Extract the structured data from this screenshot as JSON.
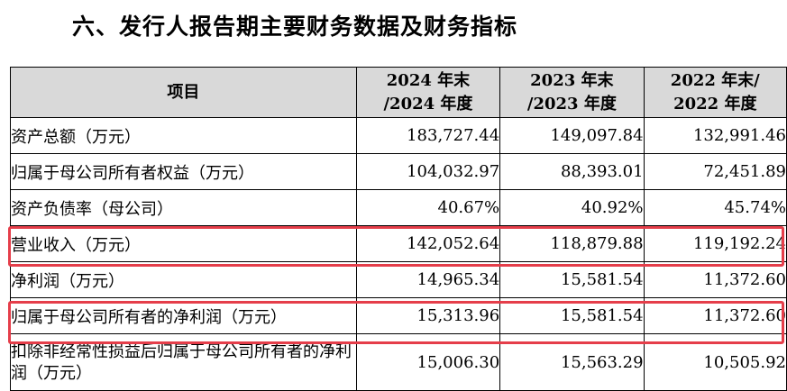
{
  "title": "六、发行人报告期主要财务数据及财务指标",
  "header": {
    "item": "项目",
    "col2024_line1": "2024 年末",
    "col2024_line2": "/2024 年度",
    "col2023_line1": "2023 年末",
    "col2023_line2": "/2023 年度",
    "col2022_line1": "2022 年末/",
    "col2022_line2": "2022 年度"
  },
  "rows": [
    {
      "label": "资产总额（万元）",
      "v2024": "183,727.44",
      "v2023": "149,097.84",
      "v2022": "132,991.46"
    },
    {
      "label": "归属于母公司所有者权益（万元）",
      "v2024": "104,032.97",
      "v2023": "88,393.01",
      "v2022": "72,451.89"
    },
    {
      "label": "资产负债率（母公司）",
      "v2024": "40.67%",
      "v2023": "40.92%",
      "v2022": "45.74%"
    },
    {
      "label": "营业收入（万元）",
      "v2024": "142,052.64",
      "v2023": "118,879.88",
      "v2022": "119,192.24"
    },
    {
      "label": "净利润（万元）",
      "v2024": "14,965.34",
      "v2023": "15,581.54",
      "v2022": "11,372.60"
    },
    {
      "label": "归属于母公司所有者的净利润（万元）",
      "v2024": "15,313.96",
      "v2023": "15,581.54",
      "v2022": "11,372.60"
    },
    {
      "label": "扣除非经常性损益后归属于母公司所有者的净利润（万元）",
      "v2024": "15,006.30",
      "v2023": "15,563.29",
      "v2022": "10,505.92"
    }
  ],
  "highlight_color": "#e53e4a"
}
